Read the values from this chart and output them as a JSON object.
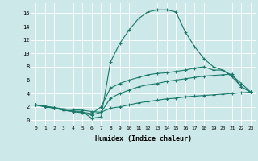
{
  "xlabel": "Humidex (Indice chaleur)",
  "background_color": "#cce8e8",
  "grid_color": "#ffffff",
  "line_color": "#1a7a6a",
  "xlim": [
    -0.5,
    23.5
  ],
  "ylim": [
    -0.8,
    17.5
  ],
  "xticks": [
    0,
    1,
    2,
    3,
    4,
    5,
    6,
    7,
    8,
    9,
    10,
    11,
    12,
    13,
    14,
    15,
    16,
    17,
    18,
    19,
    20,
    21,
    22,
    23
  ],
  "yticks": [
    0,
    2,
    4,
    6,
    8,
    10,
    12,
    14,
    16
  ],
  "line1_x": [
    0,
    1,
    2,
    3,
    4,
    5,
    6,
    7,
    8,
    9,
    10,
    11,
    12,
    13,
    14,
    15,
    16,
    17,
    18,
    19,
    20,
    21,
    22,
    23
  ],
  "line1_y": [
    2.3,
    2.1,
    1.9,
    1.5,
    1.4,
    1.3,
    0.3,
    0.5,
    8.7,
    11.5,
    13.5,
    15.2,
    16.2,
    16.5,
    16.5,
    16.2,
    13.2,
    11.0,
    9.2,
    8.0,
    7.5,
    6.5,
    5.0,
    4.2
  ],
  "line2_x": [
    0,
    1,
    2,
    3,
    4,
    5,
    6,
    7,
    8,
    9,
    10,
    11,
    12,
    13,
    14,
    15,
    16,
    17,
    18,
    19,
    20,
    21,
    22,
    23
  ],
  "line2_y": [
    2.3,
    2.1,
    1.8,
    1.5,
    1.3,
    1.2,
    1.0,
    2.0,
    4.8,
    5.5,
    6.0,
    6.4,
    6.8,
    7.0,
    7.1,
    7.3,
    7.5,
    7.8,
    8.0,
    7.5,
    7.5,
    6.7,
    5.5,
    4.2
  ],
  "line3_x": [
    0,
    1,
    2,
    3,
    4,
    5,
    6,
    7,
    8,
    9,
    10,
    11,
    12,
    13,
    14,
    15,
    16,
    17,
    18,
    19,
    20,
    21,
    22,
    23
  ],
  "line3_y": [
    2.3,
    2.0,
    1.8,
    1.5,
    1.3,
    1.1,
    0.8,
    1.2,
    3.3,
    4.0,
    4.5,
    5.0,
    5.3,
    5.5,
    5.8,
    6.0,
    6.2,
    6.4,
    6.6,
    6.7,
    6.8,
    6.9,
    5.0,
    4.2
  ],
  "line4_x": [
    0,
    1,
    2,
    3,
    4,
    5,
    6,
    7,
    8,
    9,
    10,
    11,
    12,
    13,
    14,
    15,
    16,
    17,
    18,
    19,
    20,
    21,
    22,
    23
  ],
  "line4_y": [
    2.3,
    2.0,
    1.9,
    1.7,
    1.6,
    1.5,
    1.3,
    1.2,
    1.8,
    2.0,
    2.3,
    2.6,
    2.8,
    3.0,
    3.2,
    3.3,
    3.5,
    3.6,
    3.7,
    3.8,
    3.9,
    4.0,
    4.1,
    4.2
  ]
}
